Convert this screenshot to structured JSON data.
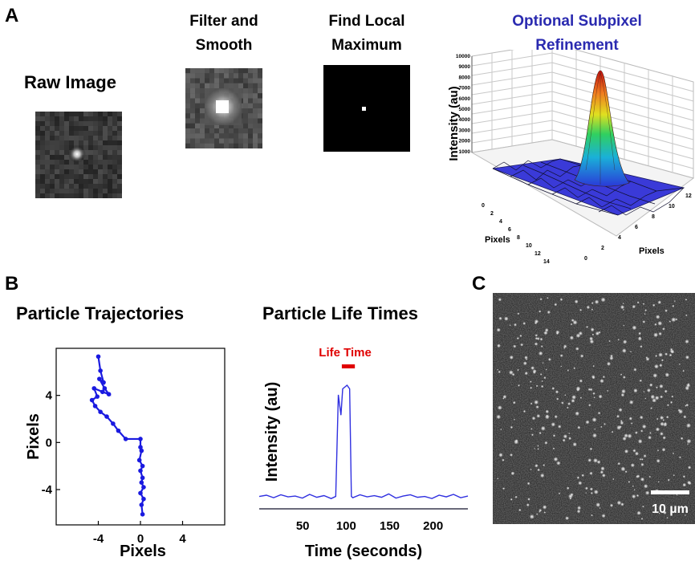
{
  "panel_a": {
    "letter": "A",
    "raw_title": "Raw Image",
    "filter_title_line1": "Filter and",
    "filter_title_line2": "Smooth",
    "local_max_title_line1": "Find Local",
    "local_max_title_line2": "Maximum",
    "subpixel_title_line1": "Optional Subpixel",
    "subpixel_title_line2": "Refinement",
    "subpixel_title_color": "#2a2ab0",
    "surface_plot": {
      "zlabel": "Intensity (au)",
      "xlabel": "Pixels",
      "ylabel": "Pixels",
      "z_ticks": [
        "10000",
        "9000",
        "8000",
        "7000",
        "6000",
        "5000",
        "4000",
        "3000",
        "2000",
        "1000"
      ],
      "x_ticks": [
        "0",
        "2",
        "4",
        "6",
        "8",
        "10",
        "12",
        "14"
      ],
      "y_ticks": [
        "0",
        "2",
        "4",
        "6",
        "8",
        "10",
        "12"
      ],
      "surface_color": "#3a3ad8"
    }
  },
  "panel_b": {
    "letter": "B",
    "trajectory_title": "Particle Trajectories",
    "lifetime_title": "Particle Life Times",
    "trajectory_chart": {
      "type": "line",
      "xlabel": "Pixels",
      "ylabel": "Pixels",
      "x_ticks": [
        "-4",
        "0",
        "4"
      ],
      "y_ticks": [
        "4",
        "0",
        "-4"
      ],
      "xlim": [
        -8,
        8
      ],
      "ylim": [
        -7,
        8
      ],
      "color": "#1a1ae0",
      "points": [
        [
          -4.0,
          7.3
        ],
        [
          -3.8,
          6.1
        ],
        [
          -3.5,
          5.1
        ],
        [
          -3.9,
          5.4
        ],
        [
          -3.4,
          4.6
        ],
        [
          -3.0,
          4.1
        ],
        [
          -3.6,
          4.3
        ],
        [
          -4.4,
          4.6
        ],
        [
          -4.1,
          3.9
        ],
        [
          -4.6,
          3.6
        ],
        [
          -4.3,
          3.1
        ],
        [
          -3.8,
          2.6
        ],
        [
          -3.2,
          2.2
        ],
        [
          -2.6,
          1.6
        ],
        [
          -2.1,
          1.0
        ],
        [
          -1.4,
          0.3
        ],
        [
          0.0,
          0.3
        ],
        [
          0.0,
          -0.4
        ],
        [
          0.1,
          -0.7
        ],
        [
          -0.1,
          -1.5
        ],
        [
          0.2,
          -2.0
        ],
        [
          0.0,
          -2.4
        ],
        [
          0.2,
          -3.0
        ],
        [
          0.1,
          -3.4
        ],
        [
          0.3,
          -3.8
        ],
        [
          0.0,
          -4.3
        ],
        [
          0.3,
          -4.8
        ],
        [
          0.1,
          -5.3
        ],
        [
          0.2,
          -6.1
        ]
      ]
    },
    "lifetime_chart": {
      "type": "line",
      "xlabel": "Time (seconds)",
      "ylabel": "Intensity (au)",
      "x_ticks": [
        "50",
        "100",
        "150",
        "200"
      ],
      "xlim": [
        0,
        240
      ],
      "annotation": "Life Time",
      "annotation_color": "#e00000",
      "color": "#3030e0",
      "baseline_noise": [
        0.2,
        0.23,
        0.17,
        0.24,
        0.19,
        0.21,
        0.16,
        0.25,
        0.18,
        0.22,
        0.15,
        0.23,
        0.2,
        0.17,
        0.24,
        0.19,
        0.22,
        0.18,
        0.26,
        0.16,
        0.21,
        0.24,
        0.18,
        0.2,
        0.15,
        0.23,
        0.19,
        0.25,
        0.17,
        0.21
      ],
      "spike": {
        "start": 88,
        "end": 106,
        "peak": 1.0
      }
    }
  },
  "panel_c": {
    "letter": "C",
    "scale_bar_label": "10 µm"
  }
}
